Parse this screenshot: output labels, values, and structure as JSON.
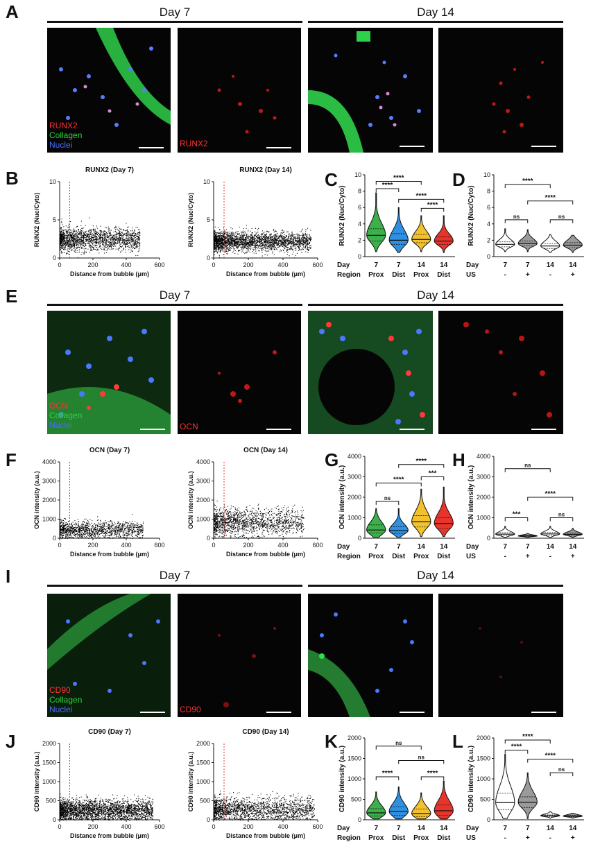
{
  "panels": {
    "A": {
      "label": "A",
      "day_left": "Day 7",
      "day_right": "Day 14",
      "overlay_labels": [
        "RUNX2",
        "Collagen",
        "Nuclei"
      ],
      "single_label": "RUNX2"
    },
    "B": {
      "label": "B",
      "charts": [
        {
          "title": "RUNX2 (Day 7)",
          "ylabel": "RUNX2 (Nuc/Cyto)",
          "xlabel": "Distance from bubble (μm)"
        },
        {
          "title": "RUNX2 (Day 14)",
          "ylabel": "RUNX2 (Nuc/Cyto)",
          "xlabel": "Distance from bubble (μm)"
        }
      ]
    },
    "C": {
      "label": "C",
      "ylabel": "RUNX2 (Nuc/Cyto)"
    },
    "D": {
      "label": "D",
      "ylabel": "RUNX2 (Nuc/Cyto)"
    },
    "E": {
      "label": "E",
      "day_left": "Day 7",
      "day_right": "Day 14",
      "overlay_labels": [
        "OCN",
        "Collagen",
        "Nuclei"
      ],
      "single_label": "OCN"
    },
    "F": {
      "label": "F",
      "charts": [
        {
          "title": "OCN (Day 7)",
          "ylabel": "OCN intensity (a.u.)",
          "xlabel": "Distance from bubble (μm)"
        },
        {
          "title": "OCN (Day 14)",
          "ylabel": "OCN intensity (a.u.)",
          "xlabel": "Distance from bubble (μm)"
        }
      ]
    },
    "G": {
      "label": "G",
      "ylabel": "OCN intensity (a.u.)"
    },
    "H": {
      "label": "H",
      "ylabel": "OCN intensity (a.u.)"
    },
    "I": {
      "label": "I",
      "day_left": "Day 7",
      "day_right": "Day 14",
      "overlay_labels": [
        "CD90",
        "Collagen",
        "Nuclei"
      ],
      "single_label": "CD90"
    },
    "J": {
      "label": "J",
      "charts": [
        {
          "title": "CD90 (Day 7)",
          "ylabel": "CD90 intensity (a.u.)",
          "xlabel": "Distance from bubble (μm)"
        },
        {
          "title": "CD90 (Day 14)",
          "ylabel": "CD90 intensity (a.u.)",
          "xlabel": "Distance from bubble (μm)"
        }
      ]
    },
    "K": {
      "label": "K",
      "ylabel": "CD90 intensity (a.u.)"
    },
    "L": {
      "label": "L",
      "ylabel": "CD90 intensity (a.u.)"
    }
  },
  "row_labels": {
    "day": "Day",
    "region": "Region",
    "us": "US"
  },
  "colors": {
    "prox7": "#3cb04a",
    "dist7": "#2f8fe0",
    "prox14": "#f2c12e",
    "dist14": "#e8352b",
    "white_violin": "#ffffff",
    "grey_violin": "#9a9a9a",
    "threshold_line": "#e03030"
  },
  "chart_data": [
    {
      "type": "scatter",
      "id": "B1",
      "title": "RUNX2 (Day 7)",
      "xlabel": "Distance from bubble (μm)",
      "ylabel": "RUNX2 (Nuc/Cyto)",
      "xlim": [
        0,
        600
      ],
      "ylim": [
        0,
        10
      ],
      "xticks": [
        "0",
        "200",
        "400",
        "600"
      ],
      "yticks": [
        "0",
        "5",
        "10"
      ],
      "threshold_x": 60,
      "cloud": {
        "x_max": 480,
        "y_center": 2.5,
        "y_spread": 1.5,
        "n": 1800
      }
    },
    {
      "type": "scatter",
      "id": "B2",
      "title": "RUNX2 (Day 14)",
      "xlabel": "Distance from bubble (μm)",
      "ylabel": "RUNX2 (Nuc/Cyto)",
      "xlim": [
        0,
        600
      ],
      "ylim": [
        0,
        10
      ],
      "xticks": [
        "0",
        "200",
        "400",
        "600"
      ],
      "yticks": [
        "0",
        "5",
        "10"
      ],
      "threshold_x": 60,
      "cloud": {
        "x_max": 560,
        "y_center": 2.2,
        "y_spread": 1.3,
        "n": 2500
      }
    },
    {
      "type": "violin",
      "id": "C",
      "ylabel": "RUNX2 (Nuc/Cyto)",
      "ylim": [
        0,
        10
      ],
      "yticks": [
        "0",
        "2",
        "4",
        "6",
        "8",
        "10"
      ],
      "categories": [
        {
          "day": "7",
          "group": "Prox",
          "median": 2.6,
          "q1": 1.9,
          "q3": 3.4,
          "min": 0.6,
          "max": 7.8,
          "color": "#3cb04a"
        },
        {
          "day": "7",
          "group": "Dist",
          "median": 2.0,
          "q1": 1.5,
          "q3": 2.8,
          "min": 0.5,
          "max": 6.0,
          "color": "#2f8fe0"
        },
        {
          "day": "14",
          "group": "Prox",
          "median": 2.1,
          "q1": 1.7,
          "q3": 2.7,
          "min": 0.6,
          "max": 5.0,
          "color": "#f2c12e"
        },
        {
          "day": "14",
          "group": "Dist",
          "median": 1.9,
          "q1": 1.5,
          "q3": 2.4,
          "min": 0.5,
          "max": 5.0,
          "color": "#e8352b"
        }
      ],
      "brackets": [
        {
          "from": 0,
          "to": 2,
          "label": "****",
          "level": 9.2
        },
        {
          "from": 0,
          "to": 1,
          "label": "****",
          "level": 8.3
        },
        {
          "from": 1,
          "to": 3,
          "label": "****",
          "level": 7.0
        },
        {
          "from": 2,
          "to": 3,
          "label": "****",
          "level": 5.9
        }
      ]
    },
    {
      "type": "violin",
      "id": "D",
      "ylabel": "RUNX2 (Nuc/Cyto)",
      "ylim": [
        0,
        10
      ],
      "yticks": [
        "0",
        "2",
        "4",
        "6",
        "8",
        "10"
      ],
      "categories": [
        {
          "day": "7",
          "group": "-",
          "median": 1.5,
          "q1": 1.2,
          "q3": 1.8,
          "min": 0.6,
          "max": 3.4,
          "color": "#ffffff"
        },
        {
          "day": "7",
          "group": "+",
          "median": 1.6,
          "q1": 1.3,
          "q3": 1.9,
          "min": 0.6,
          "max": 3.3,
          "color": "#9a9a9a"
        },
        {
          "day": "14",
          "group": "-",
          "median": 1.3,
          "q1": 1.0,
          "q3": 1.6,
          "min": 0.5,
          "max": 2.7,
          "color": "#ffffff"
        },
        {
          "day": "14",
          "group": "+",
          "median": 1.4,
          "q1": 1.1,
          "q3": 1.7,
          "min": 0.5,
          "max": 2.6,
          "color": "#9a9a9a"
        }
      ],
      "brackets": [
        {
          "from": 0,
          "to": 2,
          "label": "****",
          "level": 8.8
        },
        {
          "from": 1,
          "to": 3,
          "label": "****",
          "level": 6.8
        },
        {
          "from": 0,
          "to": 1,
          "label": "ns",
          "level": 4.5
        },
        {
          "from": 2,
          "to": 3,
          "label": "ns",
          "level": 4.5
        }
      ]
    },
    {
      "type": "scatter",
      "id": "F1",
      "title": "OCN (Day 7)",
      "xlabel": "Distance from bubble (μm)",
      "ylabel": "OCN intensity (a.u.)",
      "xlim": [
        0,
        600
      ],
      "ylim": [
        0,
        4000
      ],
      "xticks": [
        "0",
        "200",
        "400",
        "600"
      ],
      "yticks": [
        "0",
        "1000",
        "2000",
        "3000",
        "4000"
      ],
      "threshold_x": 60,
      "cloud": {
        "x_max": 500,
        "y_center": 450,
        "y_spread": 450,
        "n": 1300
      }
    },
    {
      "type": "scatter",
      "id": "F2",
      "title": "OCN (Day 14)",
      "xlabel": "Distance from bubble (μm)",
      "ylabel": "OCN intensity (a.u.)",
      "xlim": [
        0,
        600
      ],
      "ylim": [
        0,
        4000
      ],
      "xticks": [
        "0",
        "200",
        "400",
        "600"
      ],
      "yticks": [
        "0",
        "1000",
        "2000",
        "3000",
        "4000"
      ],
      "threshold_x": 60,
      "cloud": {
        "x_max": 520,
        "y_center": 850,
        "y_spread": 700,
        "n": 1500
      }
    },
    {
      "type": "violin",
      "id": "G",
      "ylabel": "OCN intensity (a.u.)",
      "ylim": [
        0,
        4000
      ],
      "yticks": [
        "0",
        "1000",
        "2000",
        "3000",
        "4000"
      ],
      "categories": [
        {
          "day": "7",
          "group": "Prox",
          "median": 400,
          "q1": 250,
          "q3": 650,
          "min": 50,
          "max": 1450,
          "color": "#3cb04a"
        },
        {
          "day": "7",
          "group": "Dist",
          "median": 380,
          "q1": 240,
          "q3": 560,
          "min": 50,
          "max": 1450,
          "color": "#2f8fe0"
        },
        {
          "day": "14",
          "group": "Prox",
          "median": 800,
          "q1": 550,
          "q3": 1100,
          "min": 80,
          "max": 2400,
          "color": "#f2c12e"
        },
        {
          "day": "14",
          "group": "Dist",
          "median": 720,
          "q1": 480,
          "q3": 1000,
          "min": 80,
          "max": 2500,
          "color": "#e8352b"
        }
      ],
      "brackets": [
        {
          "from": 1,
          "to": 3,
          "label": "****",
          "level": 3600
        },
        {
          "from": 2,
          "to": 3,
          "label": "***",
          "level": 3000
        },
        {
          "from": 0,
          "to": 2,
          "label": "****",
          "level": 2700
        },
        {
          "from": 0,
          "to": 1,
          "label": "ns",
          "level": 1800
        }
      ]
    },
    {
      "type": "violin",
      "id": "H",
      "ylabel": "OCN intensity (a.u.)",
      "ylim": [
        0,
        4000
      ],
      "yticks": [
        "0",
        "1000",
        "2000",
        "3000",
        "4000"
      ],
      "categories": [
        {
          "day": "7",
          "group": "-",
          "median": 200,
          "q1": 140,
          "q3": 270,
          "min": 40,
          "max": 580,
          "color": "#ffffff"
        },
        {
          "day": "7",
          "group": "+",
          "median": 110,
          "q1": 90,
          "q3": 140,
          "min": 40,
          "max": 230,
          "color": "#9a9a9a"
        },
        {
          "day": "14",
          "group": "-",
          "median": 210,
          "q1": 150,
          "q3": 280,
          "min": 40,
          "max": 580,
          "color": "#ffffff"
        },
        {
          "day": "14",
          "group": "+",
          "median": 190,
          "q1": 140,
          "q3": 250,
          "min": 40,
          "max": 480,
          "color": "#9a9a9a"
        }
      ],
      "brackets": [
        {
          "from": 0,
          "to": 2,
          "label": "ns",
          "level": 3400
        },
        {
          "from": 1,
          "to": 3,
          "label": "****",
          "level": 2000
        },
        {
          "from": 0,
          "to": 1,
          "label": "***",
          "level": 1000
        },
        {
          "from": 2,
          "to": 3,
          "label": "ns",
          "level": 1000
        }
      ]
    },
    {
      "type": "scatter",
      "id": "J1",
      "title": "CD90 (Day 7)",
      "xlabel": "Distance from bubble (μm)",
      "ylabel": "CD90 intensity (a.u.)",
      "xlim": [
        0,
        600
      ],
      "ylim": [
        0,
        2000
      ],
      "xticks": [
        "0",
        "200",
        "400",
        "600"
      ],
      "yticks": [
        "0",
        "500",
        "1000",
        "1500",
        "2000"
      ],
      "threshold_x": 60,
      "cloud": {
        "x_max": 560,
        "y_center": 250,
        "y_spread": 280,
        "n": 2600
      }
    },
    {
      "type": "scatter",
      "id": "J2",
      "title": "CD90 (Day 14)",
      "xlabel": "Distance from bubble (μm)",
      "ylabel": "CD90 intensity (a.u.)",
      "xlim": [
        0,
        600
      ],
      "ylim": [
        0,
        2000
      ],
      "xticks": [
        "0",
        "200",
        "400",
        "600"
      ],
      "yticks": [
        "0",
        "500",
        "1000",
        "1500",
        "2000"
      ],
      "threshold_x": 60,
      "cloud": {
        "x_max": 580,
        "y_center": 280,
        "y_spread": 320,
        "n": 1800
      }
    },
    {
      "type": "violin",
      "id": "K",
      "ylabel": "CD90 intensity (a.u.)",
      "ylim": [
        0,
        2000
      ],
      "yticks": [
        "0",
        "500",
        "1000",
        "1500",
        "2000"
      ],
      "categories": [
        {
          "day": "7",
          "group": "Prox",
          "median": 170,
          "q1": 90,
          "q3": 270,
          "min": 20,
          "max": 680,
          "color": "#3cb04a"
        },
        {
          "day": "7",
          "group": "Dist",
          "median": 200,
          "q1": 110,
          "q3": 320,
          "min": 20,
          "max": 800,
          "color": "#2f8fe0"
        },
        {
          "day": "14",
          "group": "Prox",
          "median": 150,
          "q1": 80,
          "q3": 260,
          "min": 20,
          "max": 660,
          "color": "#f2c12e"
        },
        {
          "day": "14",
          "group": "Dist",
          "median": 220,
          "q1": 110,
          "q3": 360,
          "min": 20,
          "max": 950,
          "color": "#e8352b"
        }
      ],
      "brackets": [
        {
          "from": 0,
          "to": 2,
          "label": "ns",
          "level": 1800
        },
        {
          "from": 1,
          "to": 3,
          "label": "ns",
          "level": 1450
        },
        {
          "from": 0,
          "to": 1,
          "label": "****",
          "level": 1050
        },
        {
          "from": 2,
          "to": 3,
          "label": "****",
          "level": 1050
        }
      ]
    },
    {
      "type": "violin",
      "id": "L",
      "ylabel": "CD90 intensity (a.u.)",
      "ylim": [
        0,
        2000
      ],
      "yticks": [
        "0",
        "500",
        "1000",
        "1500",
        "2000"
      ],
      "categories": [
        {
          "day": "7",
          "group": "-",
          "median": 420,
          "q1": 250,
          "q3": 650,
          "min": 30,
          "max": 1600,
          "color": "#ffffff"
        },
        {
          "day": "7",
          "group": "+",
          "median": 430,
          "q1": 300,
          "q3": 560,
          "min": 30,
          "max": 1150,
          "color": "#9a9a9a"
        },
        {
          "day": "14",
          "group": "-",
          "median": 100,
          "q1": 80,
          "q3": 120,
          "min": 40,
          "max": 200,
          "color": "#ffffff"
        },
        {
          "day": "14",
          "group": "+",
          "median": 90,
          "q1": 75,
          "q3": 110,
          "min": 40,
          "max": 160,
          "color": "#9a9a9a"
        }
      ],
      "brackets": [
        {
          "from": 0,
          "to": 2,
          "label": "****",
          "level": 1950
        },
        {
          "from": 0,
          "to": 1,
          "label": "****",
          "level": 1700
        },
        {
          "from": 1,
          "to": 3,
          "label": "****",
          "level": 1480
        },
        {
          "from": 2,
          "to": 3,
          "label": "ns",
          "level": 1150
        }
      ]
    }
  ]
}
